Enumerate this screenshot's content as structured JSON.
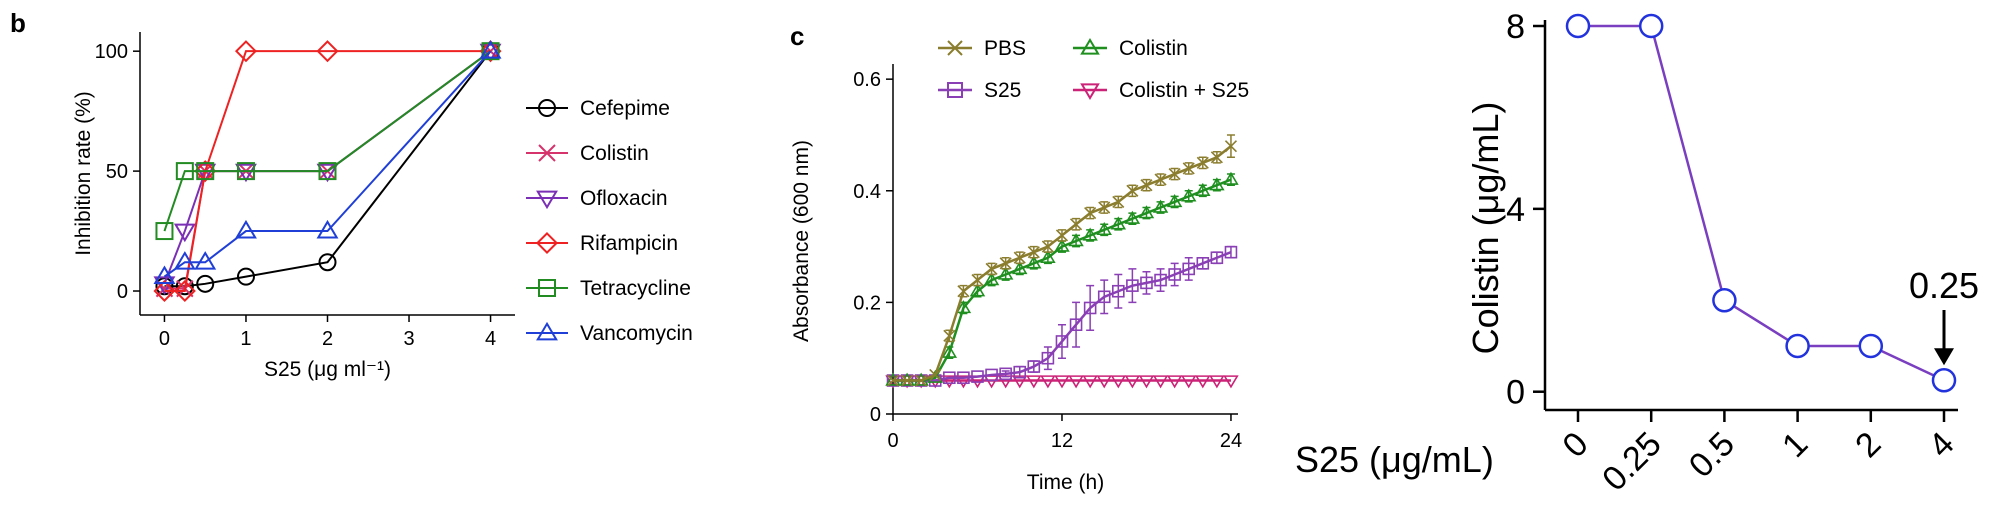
{
  "chart_data": [
    {
      "type": "line",
      "panel_label": "b",
      "xlabel": "S25 (μg ml⁻¹)",
      "ylabel": "Inhibition rate (%)",
      "xlim": [
        -0.3,
        4.3
      ],
      "ylim": [
        -10,
        108
      ],
      "xticks": [
        0,
        1,
        2,
        3,
        4
      ],
      "yticks": [
        0,
        50,
        100
      ],
      "legend_position": "right",
      "series": [
        {
          "name": "Cefepime",
          "color": "#000000",
          "marker": "circle",
          "x": [
            0,
            0.25,
            0.5,
            1,
            2,
            4
          ],
          "y": [
            2,
            2,
            3,
            6,
            12,
            100
          ]
        },
        {
          "name": "Colistin",
          "color": "#d6336c",
          "marker": "x",
          "x": [
            0,
            0.25,
            0.5,
            1,
            2,
            4
          ],
          "y": [
            1,
            1,
            50,
            50,
            50,
            100
          ]
        },
        {
          "name": "Ofloxacin",
          "color": "#7b2fb5",
          "marker": "triangle-down",
          "x": [
            0,
            0.25,
            0.5,
            1,
            2,
            4
          ],
          "y": [
            3,
            25,
            50,
            50,
            50,
            100
          ]
        },
        {
          "name": "Rifampicin",
          "color": "#ee2222",
          "marker": "diamond",
          "x": [
            0,
            0.25,
            0.5,
            1,
            2,
            4
          ],
          "y": [
            0,
            0,
            50,
            100,
            100,
            100
          ]
        },
        {
          "name": "Tetracycline",
          "color": "#228b22",
          "marker": "square",
          "x": [
            0,
            0.25,
            0.5,
            1,
            2,
            4
          ],
          "y": [
            25,
            50,
            50,
            50,
            50,
            100
          ]
        },
        {
          "name": "Vancomycin",
          "color": "#1f3fd6",
          "marker": "triangle-up",
          "x": [
            0,
            0.25,
            0.5,
            1,
            2,
            4
          ],
          "y": [
            6,
            12,
            12,
            25,
            25,
            100
          ]
        }
      ]
    },
    {
      "type": "line",
      "panel_label": "c",
      "xlabel": "Time (h)",
      "ylabel": "Absorbance (600 nm)",
      "xlim": [
        0,
        24.5
      ],
      "ylim": [
        0,
        0.62
      ],
      "xticks": [
        0,
        12,
        24
      ],
      "yticks": [
        0,
        0.2,
        0.4,
        0.6
      ],
      "legend_position": "top",
      "series": [
        {
          "name": "PBS",
          "color": "#8b7d2e",
          "marker": "x",
          "x": [
            0,
            1,
            2,
            3,
            4,
            5,
            6,
            7,
            8,
            9,
            10,
            11,
            12,
            13,
            14,
            15,
            16,
            17,
            18,
            19,
            20,
            21,
            22,
            23,
            24
          ],
          "y": [
            0.06,
            0.06,
            0.06,
            0.07,
            0.14,
            0.22,
            0.24,
            0.26,
            0.27,
            0.28,
            0.29,
            0.3,
            0.32,
            0.34,
            0.36,
            0.37,
            0.38,
            0.4,
            0.41,
            0.42,
            0.43,
            0.44,
            0.45,
            0.46,
            0.48
          ],
          "err": [
            0,
            0,
            0,
            0,
            0.01,
            0.01,
            0.01,
            0.01,
            0.01,
            0.01,
            0.01,
            0.01,
            0.01,
            0.01,
            0.01,
            0.01,
            0.01,
            0.01,
            0.01,
            0.01,
            0.01,
            0.01,
            0.01,
            0.01,
            0.02
          ]
        },
        {
          "name": "S25",
          "color": "#8a3fb5",
          "marker": "square",
          "x": [
            0,
            1,
            2,
            3,
            4,
            5,
            6,
            7,
            8,
            9,
            10,
            11,
            12,
            13,
            14,
            15,
            16,
            17,
            18,
            19,
            20,
            21,
            22,
            23,
            24
          ],
          "y": [
            0.06,
            0.06,
            0.06,
            0.06,
            0.065,
            0.065,
            0.067,
            0.07,
            0.072,
            0.075,
            0.085,
            0.1,
            0.13,
            0.16,
            0.19,
            0.21,
            0.22,
            0.23,
            0.235,
            0.24,
            0.25,
            0.26,
            0.27,
            0.28,
            0.29
          ],
          "err": [
            0,
            0,
            0,
            0,
            0,
            0,
            0,
            0,
            0.005,
            0.01,
            0.01,
            0.02,
            0.03,
            0.04,
            0.04,
            0.03,
            0.03,
            0.03,
            0.02,
            0.02,
            0.02,
            0.02,
            0.01,
            0.01,
            0.01
          ]
        },
        {
          "name": "Colistin",
          "color": "#1f8f1f",
          "marker": "triangle-up",
          "x": [
            0,
            1,
            2,
            3,
            4,
            5,
            6,
            7,
            8,
            9,
            10,
            11,
            12,
            13,
            14,
            15,
            16,
            17,
            18,
            19,
            20,
            21,
            22,
            23,
            24
          ],
          "y": [
            0.06,
            0.06,
            0.06,
            0.065,
            0.11,
            0.19,
            0.22,
            0.24,
            0.25,
            0.26,
            0.27,
            0.28,
            0.3,
            0.31,
            0.32,
            0.33,
            0.34,
            0.35,
            0.36,
            0.37,
            0.38,
            0.39,
            0.4,
            0.41,
            0.42
          ],
          "err": [
            0,
            0,
            0,
            0,
            0.01,
            0.01,
            0.01,
            0.01,
            0.01,
            0.01,
            0.01,
            0.01,
            0.01,
            0.01,
            0.01,
            0.01,
            0.01,
            0.01,
            0.01,
            0.01,
            0.01,
            0.01,
            0.01,
            0.01,
            0.01
          ]
        },
        {
          "name": "Colistin + S25",
          "color": "#cc2277",
          "marker": "triangle-down",
          "x": [
            0,
            1,
            2,
            3,
            4,
            5,
            6,
            7,
            8,
            9,
            10,
            11,
            12,
            13,
            14,
            15,
            16,
            17,
            18,
            19,
            20,
            21,
            22,
            23,
            24
          ],
          "y": [
            0.06,
            0.06,
            0.06,
            0.06,
            0.06,
            0.06,
            0.06,
            0.06,
            0.06,
            0.06,
            0.06,
            0.06,
            0.06,
            0.06,
            0.06,
            0.06,
            0.06,
            0.06,
            0.06,
            0.06,
            0.06,
            0.06,
            0.06,
            0.06,
            0.06
          ],
          "err": [
            0,
            0,
            0,
            0,
            0,
            0,
            0,
            0,
            0,
            0,
            0,
            0,
            0,
            0,
            0,
            0,
            0,
            0,
            0,
            0,
            0,
            0,
            0,
            0,
            0
          ]
        }
      ]
    },
    {
      "type": "line",
      "xlabel": "S25 (μg/mL)",
      "ylabel": "Colistin (μg/mL)",
      "categories": [
        "0",
        "0.25",
        "0.5",
        "1",
        "2",
        "4"
      ],
      "ylim": [
        -0.4,
        8
      ],
      "yticks": [
        0,
        4,
        8
      ],
      "series": [
        {
          "color": "#7a3fc0",
          "marker_color": "#2233dd",
          "values": [
            8,
            8,
            2,
            1,
            1,
            0.25
          ]
        }
      ],
      "annotation": {
        "text": "0.25",
        "category_index": 5,
        "arrow": "down"
      }
    }
  ]
}
